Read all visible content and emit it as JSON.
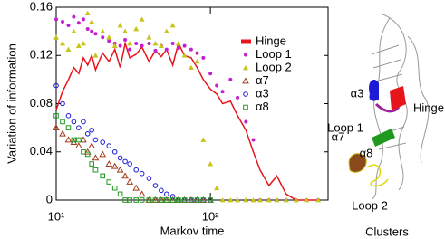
{
  "chart_data": {
    "type": "scatter-line",
    "xlabel": "Markov time",
    "ylabel": "Variation of information",
    "xscale": "log",
    "xlim": [
      10,
      580
    ],
    "xticks": [
      {
        "value": 10,
        "label": "10¹"
      },
      {
        "value": 100,
        "label": "10²"
      }
    ],
    "ylim": [
      0,
      0.16
    ],
    "yticks": [
      0,
      0.04,
      0.08,
      0.12,
      0.16
    ],
    "legend": "upper right",
    "x": [
      10,
      11,
      12,
      13,
      14,
      15,
      16,
      17,
      18,
      20,
      22,
      24,
      26,
      28,
      30,
      33,
      36,
      40,
      44,
      48,
      52,
      57,
      62,
      68,
      75,
      82,
      90,
      100,
      110,
      120,
      135,
      150,
      170,
      190,
      210,
      240,
      270,
      310,
      360,
      420,
      500
    ],
    "series": [
      {
        "name": "Hinge",
        "color": "#e8141b",
        "marker": "line",
        "values": [
          0.075,
          0.09,
          0.1,
          0.11,
          0.105,
          0.118,
          0.112,
          0.12,
          0.108,
          0.122,
          0.115,
          0.125,
          0.11,
          0.13,
          0.118,
          0.121,
          0.127,
          0.115,
          0.124,
          0.119,
          0.125,
          0.112,
          0.13,
          0.12,
          0.118,
          0.11,
          0.1,
          0.092,
          0.088,
          0.08,
          0.082,
          0.07,
          0.058,
          0.04,
          0.025,
          0.012,
          0.02,
          0.005,
          0,
          0,
          0
        ]
      },
      {
        "name": "Loop 1",
        "color": "#c51fd0",
        "marker": "circle-filled",
        "values": [
          0.15,
          0.148,
          0.145,
          0.152,
          0.147,
          0.15,
          0.142,
          0.14,
          0.138,
          0.135,
          0.132,
          0.13,
          0.128,
          0.133,
          0.125,
          0.13,
          0.128,
          0.13,
          0.124,
          0.128,
          0.125,
          0.13,
          0.126,
          0.128,
          0.125,
          0.122,
          0.118,
          0.105,
          0.095,
          0.09,
          0.1,
          0.085,
          0.065,
          0.05,
          0,
          0,
          0,
          0,
          0,
          0,
          0
        ]
      },
      {
        "name": "Loop 2",
        "color": "#c8c41a",
        "marker": "triangle-filled",
        "values": [
          0.135,
          0.13,
          0.125,
          0.14,
          0.128,
          0.13,
          0.155,
          0.148,
          0.12,
          0.14,
          0.135,
          0.128,
          0.145,
          0.14,
          0.13,
          0.142,
          0.15,
          0.135,
          0.13,
          0.128,
          0.14,
          0.145,
          0.13,
          0.12,
          0.11,
          0.115,
          0.05,
          0.03,
          0.01,
          0,
          0,
          0,
          0,
          0,
          0,
          0,
          0,
          0,
          0,
          0,
          0
        ]
      },
      {
        "name": "α7",
        "color": "#a23b1c",
        "marker": "triangle-open",
        "values": [
          0.06,
          0.055,
          0.05,
          0.048,
          0.045,
          0.05,
          0.04,
          0.045,
          0.035,
          0.038,
          0.03,
          0.028,
          0.025,
          0.02,
          0.015,
          0.01,
          0.005,
          0,
          0,
          0,
          0,
          0,
          0,
          0,
          0,
          0,
          0,
          0,
          null,
          null,
          null,
          null,
          null,
          null,
          null,
          null,
          null,
          null,
          null,
          null,
          null
        ]
      },
      {
        "name": "α3",
        "color": "#1c1cd6",
        "marker": "circle-open",
        "values": [
          0.095,
          0.08,
          0.07,
          0.065,
          0.06,
          0.065,
          0.055,
          0.058,
          0.05,
          0.048,
          0.045,
          0.04,
          0.035,
          0.032,
          0.03,
          0.025,
          0.022,
          0.018,
          0.012,
          0.008,
          0.005,
          0.003,
          0,
          0,
          0,
          0,
          0,
          0,
          null,
          null,
          null,
          null,
          null,
          null,
          null,
          null,
          null,
          null,
          null,
          null,
          null
        ]
      },
      {
        "name": "α8",
        "color": "#1f9a1f",
        "marker": "square-open",
        "values": [
          0.07,
          0.065,
          0.06,
          0.05,
          0.05,
          0.04,
          0.038,
          0.03,
          0.025,
          0.02,
          0.015,
          0.01,
          0.005,
          0,
          0,
          0,
          0,
          0,
          0,
          0,
          0,
          0,
          0,
          0,
          0,
          0,
          0,
          0,
          null,
          null,
          null,
          null,
          null,
          null,
          null,
          null,
          null,
          null,
          null,
          null,
          null
        ]
      }
    ]
  },
  "diagram": {
    "labels": [
      "α3",
      "Loop 1",
      "Hinge",
      "α8",
      "α7",
      "Loop 2"
    ],
    "caption": "Clusters"
  }
}
